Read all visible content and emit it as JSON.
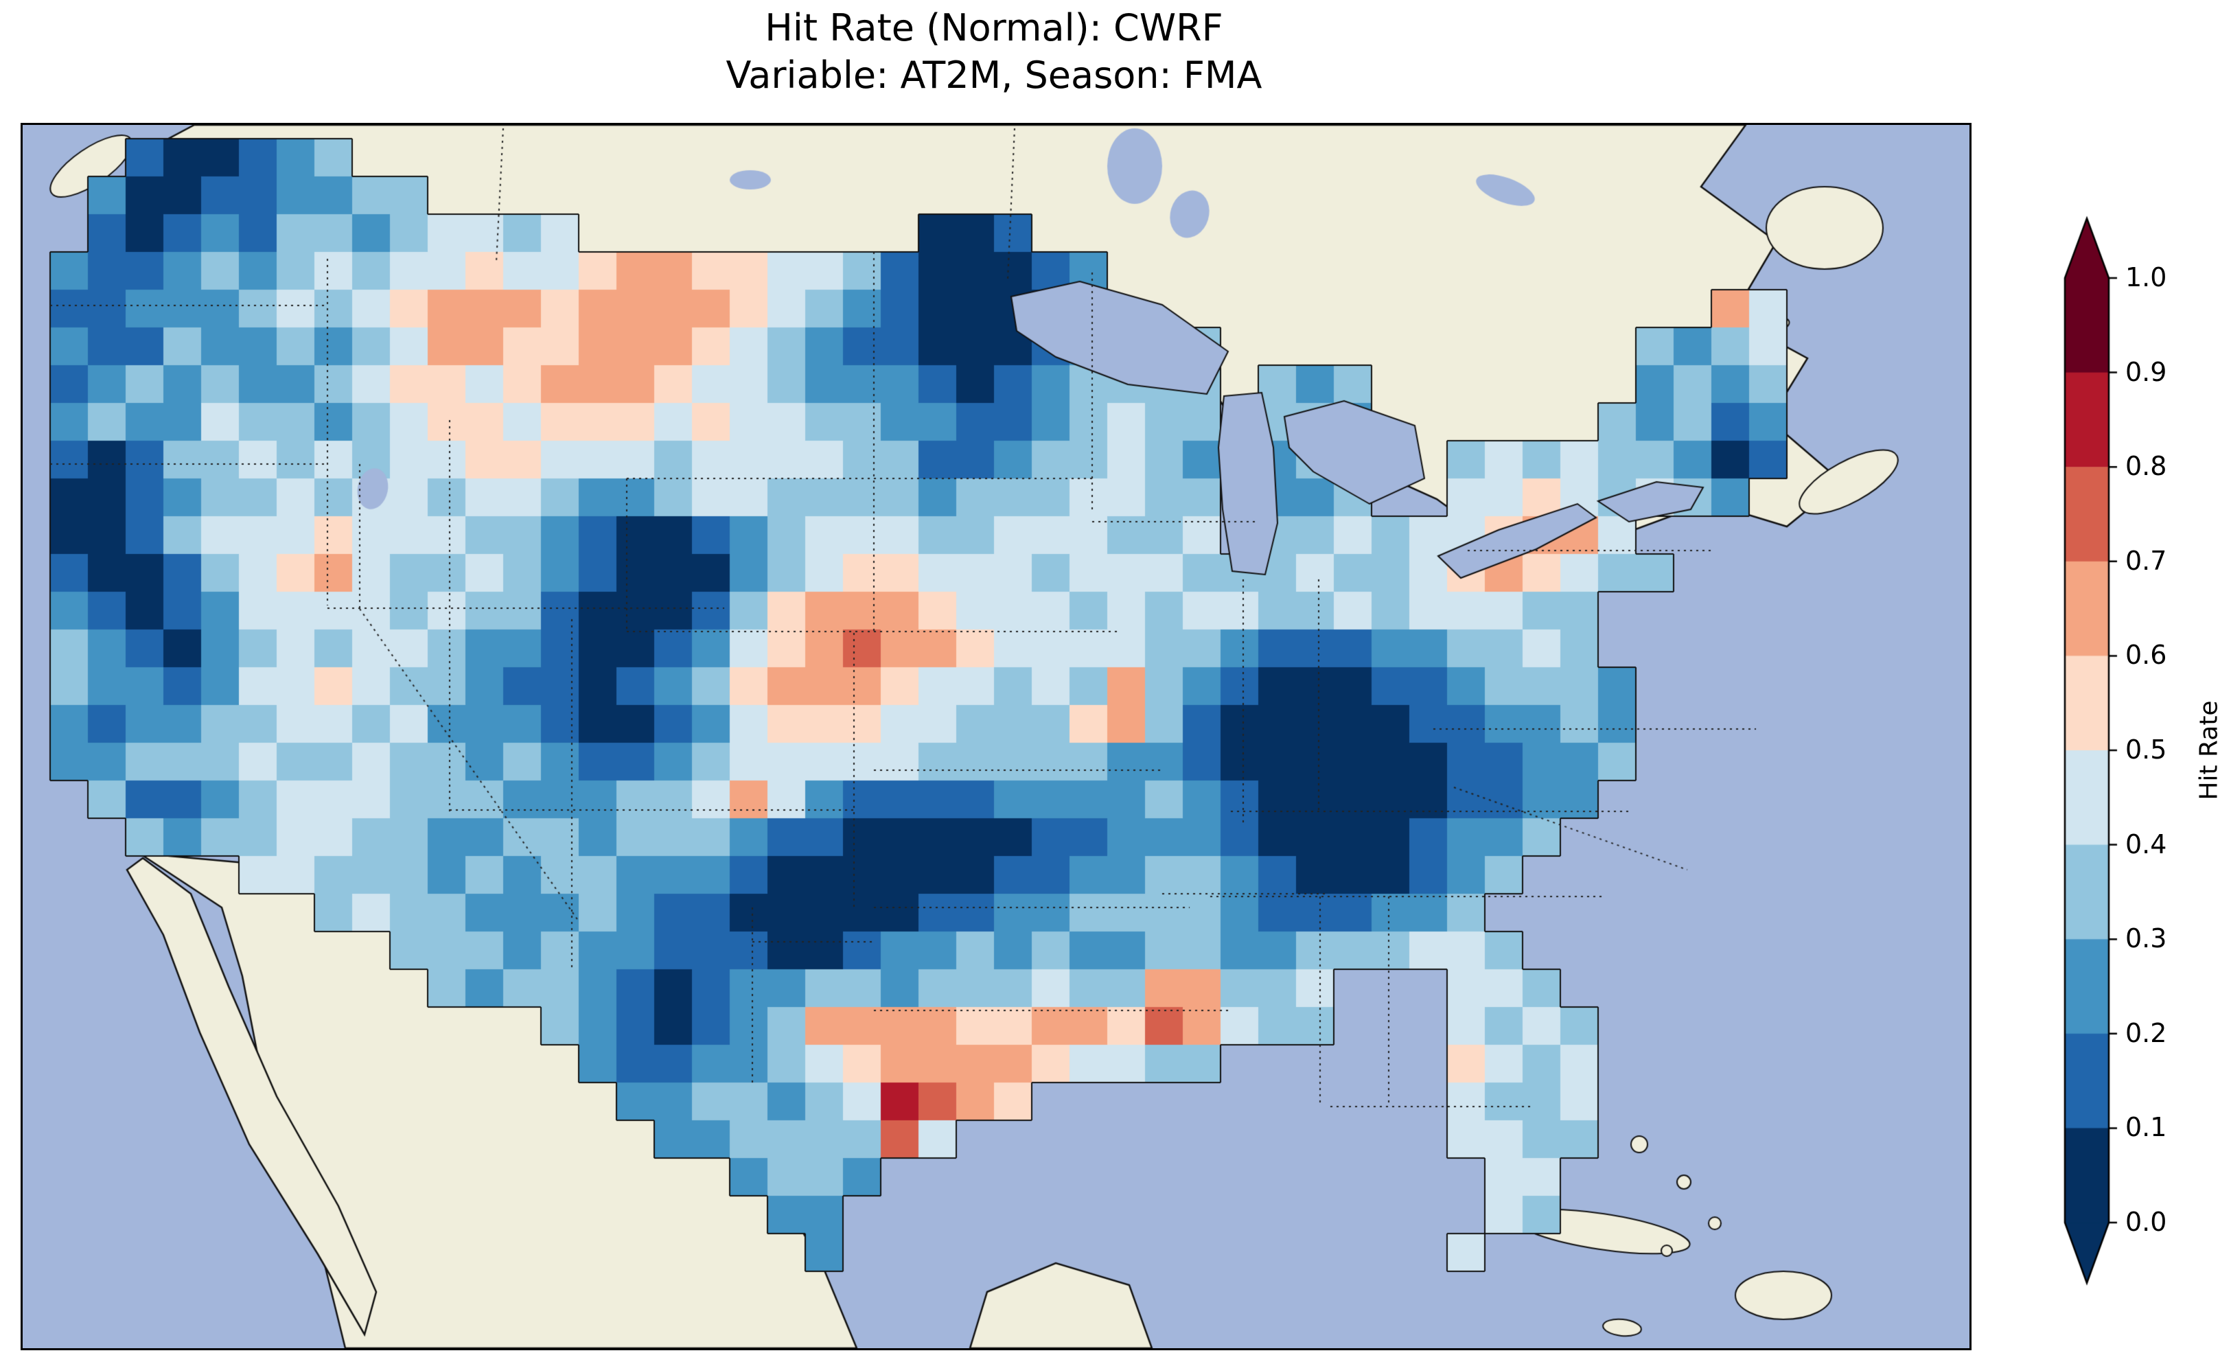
{
  "figure": {
    "background": "#ffffff"
  },
  "title": {
    "line1": "Hit Rate (Normal): CWRF",
    "line2": "Variable: AT2M, Season: FMA"
  },
  "colorbar": {
    "label": "Hit Rate",
    "ticks": [
      "1.0",
      "0.9",
      "0.8",
      "0.7",
      "0.6",
      "0.5",
      "0.4",
      "0.3",
      "0.2",
      "0.1",
      "0.0"
    ],
    "tick_values": [
      1.0,
      0.9,
      0.8,
      0.7,
      0.6,
      0.5,
      0.4,
      0.3,
      0.2,
      0.1,
      0.0
    ],
    "bin_colors": [
      "#053061",
      "#2166ac",
      "#4393c3",
      "#92c5de",
      "#d1e5f0",
      "#fddbc7",
      "#f4a582",
      "#d6604d",
      "#b2182b",
      "#67001f"
    ],
    "under_color": "#053061",
    "over_color": "#67001f",
    "extend": "both"
  },
  "map_colors": {
    "ocean": "#a3b6db",
    "land": "#f0eedc",
    "lake": "#a3b6db",
    "coastline": "#111111",
    "borders": "#222222"
  },
  "chart_data": {
    "type": "heatmap",
    "title": "Hit Rate (Normal): CWRF",
    "subtitle": "Variable: AT2M, Season: FMA",
    "metric": "Hit Rate (Normal)",
    "model": "CWRF",
    "variable": "AT2M",
    "season": "FMA",
    "colorbar_label": "Hit Rate",
    "value_range": [
      0.0,
      1.0
    ],
    "bin_edges": [
      0.0,
      0.1,
      0.2,
      0.3,
      0.4,
      0.5,
      0.6,
      0.7,
      0.8,
      0.9,
      1.0
    ],
    "legend_position": "right",
    "region": "contiguous United States",
    "grid_encoding": {
      ".": null,
      "0": 0.05,
      "1": 0.15,
      "2": 0.25,
      "3": 0.35,
      "4": 0.45,
      "5": 0.55,
      "6": 0.65,
      "7": 0.75,
      "8": 0.85
    },
    "n_rows": 30,
    "n_cols": 46,
    "grid_rows": [
      "..100123......................................",
      ".200112233....................................",
      ".1012133234434.........001....................",
      "2112323434454456655443100012..................",
      "1122234345666566665432100001................64",
      "2113223234665566654321100012223...........3234",
      "1232322345545666544322210123333.323.......2323",
      "2322433234554555454433221123433.332......32312",
      "1013343434455444344443311233432.233..343433201",
      "0012334344344322344333323334433.223..44543432.",
      "0013444544433210012344433444334.3343445664....",
      "1001345643343210002345544434443334334565433...",
      "21012444434331000135666544434344334344433.....",
      "32102343443221001245676654444332111223343.....",
      "322124454332110123566654434363210001123332....",
      "212233443422210012455544333563100000112232....",
      "223334334332321123444443333322100000011223....",
      ".3112344433322233464211112222321000001122.....",
      "..32334433223323332110000011222100001223......",
      ".....4433323233222100000011223321000123.......",
      ".......3433222321100000112233332111223........",
      ".........333232211100122323223322333443.......",
      "..........323321012233233343366334...443......",
      ".............321012366665566576433...4343.....",
      "..............21122345666654433......5434.....",
      "...............22332348765...........4334.....",
      "................22333374.............4433.....",
      "..................2332................44......",
      "...................22.................43......",
      "....................2................4........"
    ]
  }
}
